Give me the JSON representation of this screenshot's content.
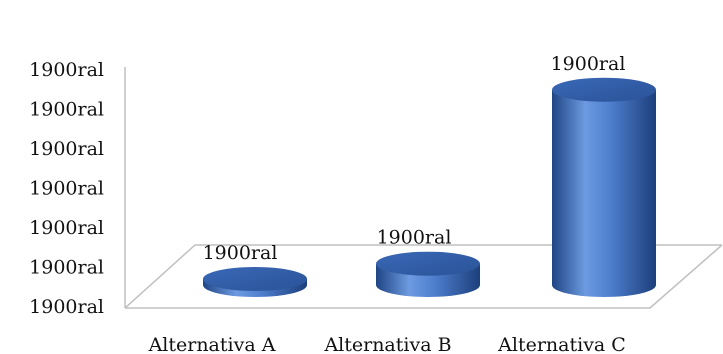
{
  "chart_data": {
    "type": "bar",
    "style": "3d-cylinder",
    "categories": [
      "Alternativa A",
      "Alternativa B",
      "Alternativa C"
    ],
    "values": [
      0.5,
      6,
      55
    ],
    "data_labels": [
      "1900ral",
      "1900ral",
      "1900ral"
    ],
    "y_tick_labels": [
      "1900ral",
      "1900ral",
      "1900ral",
      "1900ral",
      "1900ral",
      "1900ral",
      "1900ral"
    ],
    "ylim": [
      0,
      60
    ],
    "grid": false,
    "legend": "none",
    "colors": {
      "bar_light": "#6d9ae0",
      "bar_mid": "#3e6fc2",
      "bar_dark": "#1f4585",
      "axis": "#c0c0c0"
    }
  }
}
